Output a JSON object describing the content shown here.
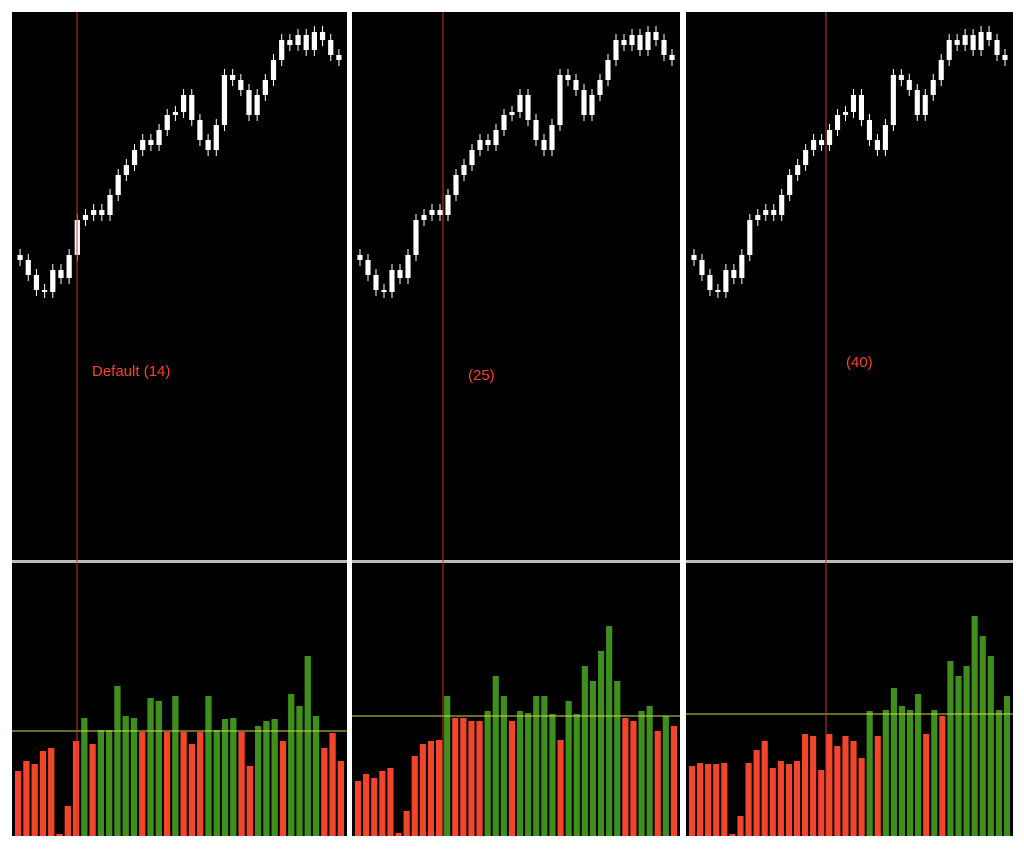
{
  "panels": [
    {
      "label": "Default (14)",
      "candles": {
        "color": "#ffffff",
        "open": [
          305,
          300,
          285,
          270,
          268,
          290,
          282,
          305,
          340,
          345,
          350,
          345,
          365,
          385,
          395,
          410,
          420,
          415,
          430,
          445,
          448,
          465,
          440,
          420,
          410,
          435,
          485,
          480,
          470,
          445,
          465,
          480,
          500,
          520,
          515,
          525,
          510,
          528,
          520,
          505
        ],
        "high": [
          311,
          306,
          291,
          276,
          296,
          296,
          311,
          346,
          351,
          356,
          356,
          371,
          391,
          401,
          416,
          426,
          426,
          436,
          451,
          454,
          471,
          471,
          446,
          426,
          441,
          491,
          491,
          486,
          476,
          471,
          486,
          506,
          526,
          526,
          531,
          531,
          534,
          534,
          526,
          511
        ],
        "low": [
          294,
          279,
          264,
          262,
          262,
          276,
          276,
          299,
          334,
          339,
          339,
          339,
          359,
          379,
          389,
          404,
          409,
          409,
          424,
          439,
          442,
          434,
          414,
          404,
          404,
          429,
          474,
          464,
          439,
          439,
          459,
          474,
          494,
          509,
          509,
          504,
          504,
          514,
          499,
          494
        ],
        "close": [
          300,
          285,
          270,
          268,
          290,
          282,
          305,
          340,
          345,
          350,
          345,
          365,
          385,
          395,
          410,
          420,
          415,
          430,
          445,
          448,
          465,
          440,
          420,
          410,
          435,
          485,
          480,
          470,
          445,
          465,
          480,
          500,
          520,
          515,
          525,
          510,
          528,
          520,
          505,
          500
        ]
      },
      "histogram": {
        "up_color": "#3f8f1f",
        "down_color": "#f2452a",
        "level_color": "#d8d84a",
        "level": 105,
        "values": [
          65,
          75,
          72,
          85,
          88,
          2,
          30,
          95,
          118,
          92,
          106,
          106,
          150,
          120,
          118,
          104,
          138,
          135,
          104,
          140,
          104,
          92,
          104,
          140,
          106,
          117,
          118,
          104,
          70,
          110,
          115,
          117,
          95,
          142,
          130,
          180,
          120,
          88,
          103,
          75
        ]
      }
    },
    {
      "label": "(25)",
      "candles": {
        "color": "#ffffff",
        "open": [
          305,
          300,
          285,
          270,
          268,
          290,
          282,
          305,
          340,
          345,
          350,
          345,
          365,
          385,
          395,
          410,
          420,
          415,
          430,
          445,
          448,
          465,
          440,
          420,
          410,
          435,
          485,
          480,
          470,
          445,
          465,
          480,
          500,
          520,
          515,
          525,
          510,
          528,
          520,
          505
        ],
        "high": [
          311,
          306,
          291,
          276,
          296,
          296,
          311,
          346,
          351,
          356,
          356,
          371,
          391,
          401,
          416,
          426,
          426,
          436,
          451,
          454,
          471,
          471,
          446,
          426,
          441,
          491,
          491,
          486,
          476,
          471,
          486,
          506,
          526,
          526,
          531,
          531,
          534,
          534,
          526,
          511
        ],
        "low": [
          294,
          279,
          264,
          262,
          262,
          276,
          276,
          299,
          334,
          339,
          339,
          339,
          359,
          379,
          389,
          404,
          409,
          409,
          424,
          439,
          442,
          434,
          414,
          404,
          404,
          429,
          474,
          464,
          439,
          439,
          459,
          474,
          494,
          509,
          509,
          504,
          504,
          514,
          499,
          494
        ],
        "close": [
          300,
          285,
          270,
          268,
          290,
          282,
          305,
          340,
          345,
          350,
          345,
          365,
          385,
          395,
          410,
          420,
          415,
          430,
          445,
          448,
          465,
          440,
          420,
          410,
          435,
          485,
          480,
          470,
          445,
          465,
          480,
          500,
          520,
          515,
          525,
          510,
          528,
          520,
          505,
          500
        ]
      },
      "histogram": {
        "up_color": "#3f8f1f",
        "down_color": "#f2452a",
        "level_color": "#d8d84a",
        "level": 120,
        "values": [
          55,
          62,
          58,
          65,
          68,
          3,
          25,
          80,
          92,
          95,
          96,
          140,
          118,
          118,
          115,
          115,
          125,
          160,
          140,
          115,
          125,
          123,
          140,
          140,
          122,
          96,
          135,
          122,
          170,
          155,
          185,
          210,
          155,
          118,
          115,
          125,
          130,
          105,
          120,
          110
        ]
      }
    },
    {
      "label": "(40)",
      "candles": {
        "color": "#ffffff",
        "open": [
          305,
          300,
          285,
          270,
          268,
          290,
          282,
          305,
          340,
          345,
          350,
          345,
          365,
          385,
          395,
          410,
          420,
          415,
          430,
          445,
          448,
          465,
          440,
          420,
          410,
          435,
          485,
          480,
          470,
          445,
          465,
          480,
          500,
          520,
          515,
          525,
          510,
          528,
          520,
          505
        ],
        "high": [
          311,
          306,
          291,
          276,
          296,
          296,
          311,
          346,
          351,
          356,
          356,
          371,
          391,
          401,
          416,
          426,
          426,
          436,
          451,
          454,
          471,
          471,
          446,
          426,
          441,
          491,
          491,
          486,
          476,
          471,
          486,
          506,
          526,
          526,
          531,
          531,
          534,
          534,
          526,
          511
        ],
        "low": [
          294,
          279,
          264,
          262,
          262,
          276,
          276,
          299,
          334,
          339,
          339,
          339,
          359,
          379,
          389,
          404,
          409,
          409,
          424,
          439,
          442,
          434,
          414,
          404,
          404,
          429,
          474,
          464,
          439,
          439,
          459,
          474,
          494,
          509,
          509,
          504,
          504,
          514,
          499,
          494
        ],
        "close": [
          300,
          285,
          270,
          268,
          290,
          282,
          305,
          340,
          345,
          350,
          345,
          365,
          385,
          395,
          410,
          420,
          415,
          430,
          445,
          448,
          465,
          440,
          420,
          410,
          435,
          485,
          480,
          470,
          445,
          465,
          480,
          500,
          520,
          515,
          525,
          510,
          528,
          520,
          505,
          500
        ]
      },
      "histogram": {
        "up_color": "#3f8f1f",
        "down_color": "#f2452a",
        "level_color": "#d8d84a",
        "level": 122,
        "values": [
          70,
          73,
          72,
          72,
          73,
          2,
          20,
          73,
          86,
          95,
          68,
          75,
          72,
          75,
          102,
          100,
          66,
          102,
          90,
          100,
          95,
          78,
          125,
          100,
          126,
          148,
          130,
          126,
          142,
          102,
          126,
          120,
          175,
          160,
          170,
          220,
          200,
          180,
          126,
          140
        ]
      }
    }
  ]
}
